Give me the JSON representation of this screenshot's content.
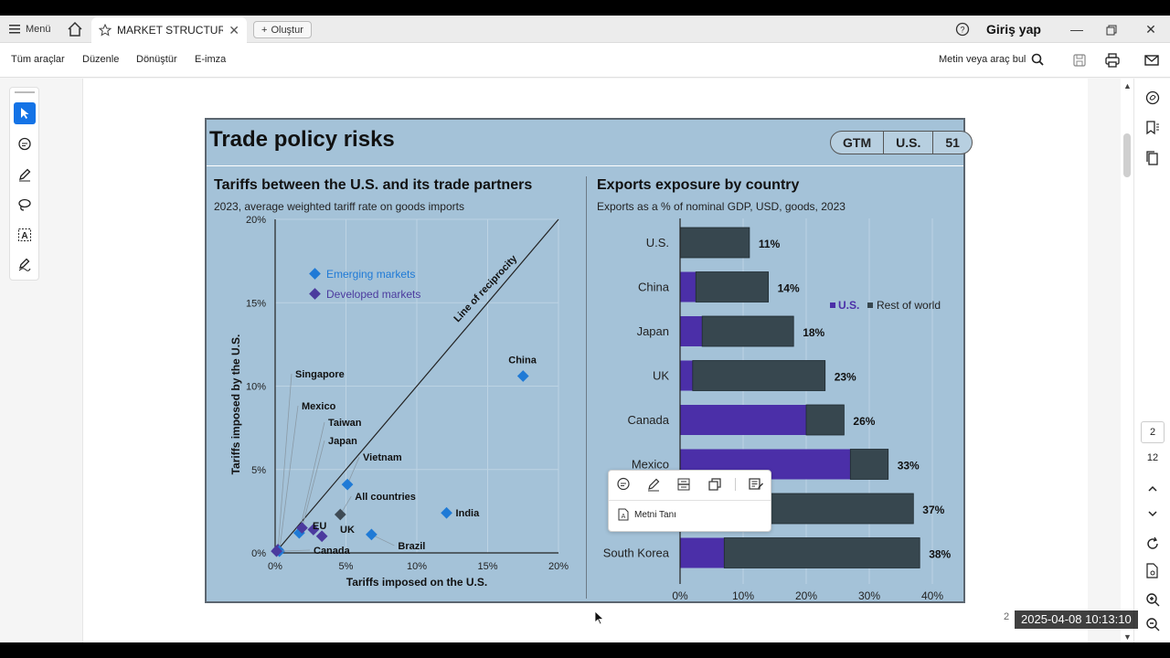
{
  "titlebar": {
    "menu_label": "Menü",
    "tab_title": "MARKET STRUCTUR...",
    "new_label": "Oluştur",
    "signin_label": "Giriş yap"
  },
  "toolbar": {
    "items": [
      "Tüm araçlar",
      "Düzenle",
      "Dönüştür",
      "E-imza"
    ],
    "find_label": "Metin veya araç bul"
  },
  "page_nav": {
    "current": "2",
    "total": "12"
  },
  "slide": {
    "title": "Trade policy risks",
    "badges": [
      "GTM",
      "U.S.",
      "51"
    ]
  },
  "floating_toolbar": {
    "ocr_label": "Metni Tanı"
  },
  "timestamp": "2025-04-08  10:13:10",
  "page_corner_number": "2",
  "chart_data": [
    {
      "type": "scatter",
      "title": "Tariffs between the U.S. and its trade partners",
      "subtitle": "2023, average weighted tariff rate on goods imports",
      "xlabel": "Tariffs imposed on the U.S.",
      "ylabel": "Tariffs imposed by the U.S.",
      "xlim": [
        0,
        20
      ],
      "ylim": [
        0,
        20
      ],
      "xticks": [
        "0%",
        "5%",
        "10%",
        "15%",
        "20%"
      ],
      "yticks": [
        "0%",
        "5%",
        "10%",
        "15%",
        "20%"
      ],
      "reference_line_label": "Line of reciprocity",
      "legend": [
        {
          "name": "Emerging markets",
          "color": "#1f7ad6"
        },
        {
          "name": "Developed markets",
          "color": "#4b3a9e"
        }
      ],
      "points": [
        {
          "label": "China",
          "x": 17.5,
          "y": 10.6,
          "group": "Emerging markets"
        },
        {
          "label": "India",
          "x": 12.1,
          "y": 2.4,
          "group": "Emerging markets"
        },
        {
          "label": "Brazil",
          "x": 6.8,
          "y": 1.1,
          "group": "Emerging markets"
        },
        {
          "label": "Vietnam",
          "x": 5.1,
          "y": 4.1,
          "group": "Emerging markets"
        },
        {
          "label": "All countries",
          "x": 4.6,
          "y": 2.3,
          "group": "All"
        },
        {
          "label": "Singapore",
          "x": 0.2,
          "y": 0.2,
          "group": "Developed markets"
        },
        {
          "label": "Mexico",
          "x": 0.3,
          "y": 0.1,
          "group": "Emerging markets"
        },
        {
          "label": "Taiwan",
          "x": 1.7,
          "y": 1.2,
          "group": "Emerging markets"
        },
        {
          "label": "Japan",
          "x": 1.9,
          "y": 1.5,
          "group": "Developed markets"
        },
        {
          "label": "EU",
          "x": 2.7,
          "y": 1.4,
          "group": "Developed markets"
        },
        {
          "label": "UK",
          "x": 3.3,
          "y": 1.0,
          "group": "Developed markets"
        },
        {
          "label": "Canada",
          "x": 0.1,
          "y": 0.1,
          "group": "Developed markets"
        }
      ]
    },
    {
      "type": "bar",
      "orientation": "horizontal",
      "stacked": true,
      "title": "Exports exposure by country",
      "subtitle": "Exports as a % of nominal GDP, USD, goods, 2023",
      "categories": [
        "U.S.",
        "China",
        "Japan",
        "UK",
        "Canada",
        "Mexico",
        "",
        "South Korea"
      ],
      "series": [
        {
          "name": "U.S.",
          "color": "#4b2fa8",
          "values": [
            0,
            2.5,
            3.5,
            2,
            20,
            27,
            0,
            7
          ]
        },
        {
          "name": "Rest of world",
          "color": "#37474f",
          "values": [
            11,
            11.5,
            14.5,
            21,
            6,
            6,
            37,
            31
          ]
        }
      ],
      "totals_labels": [
        "11%",
        "14%",
        "18%",
        "23%",
        "26%",
        "33%",
        "37%",
        "38%"
      ],
      "xlim": [
        0,
        40
      ],
      "xticks": [
        "0%",
        "10%",
        "20%",
        "30%",
        "40%"
      ]
    }
  ]
}
